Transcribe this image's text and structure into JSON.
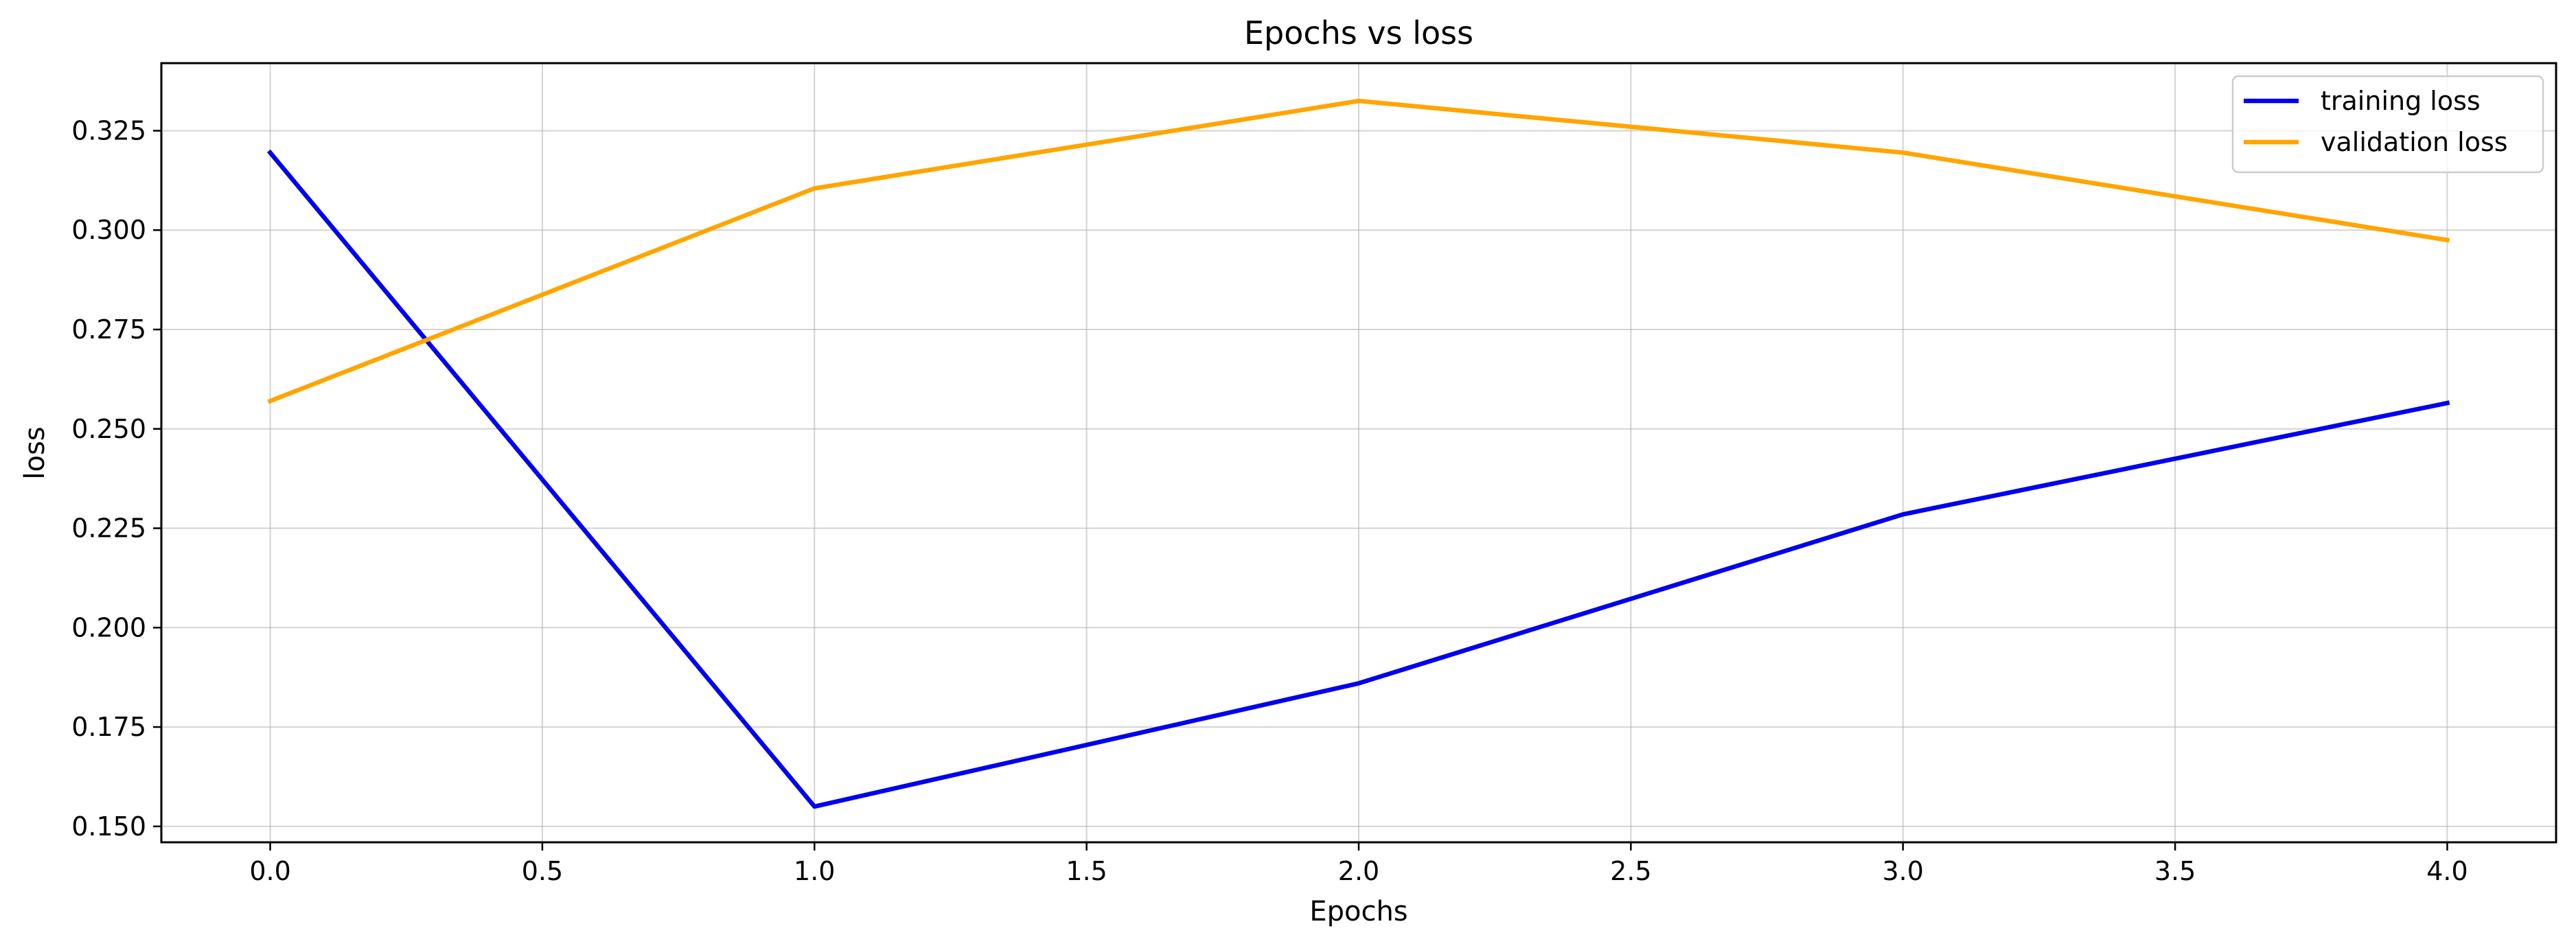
{
  "chart_data": {
    "type": "line",
    "title": "Epochs vs loss",
    "xlabel": "Epochs",
    "ylabel": "loss",
    "x": [
      0,
      1,
      2,
      3,
      4
    ],
    "xlim": [
      -0.2,
      4.2
    ],
    "ylim": [
      0.146,
      0.342
    ],
    "xticks": [
      0.0,
      0.5,
      1.0,
      1.5,
      2.0,
      2.5,
      3.0,
      3.5,
      4.0
    ],
    "xtick_labels": [
      "0.0",
      "0.5",
      "1.0",
      "1.5",
      "2.0",
      "2.5",
      "3.0",
      "3.5",
      "4.0"
    ],
    "yticks": [
      0.15,
      0.175,
      0.2,
      0.225,
      0.25,
      0.275,
      0.3,
      0.325
    ],
    "ytick_labels": [
      "0.150",
      "0.175",
      "0.200",
      "0.225",
      "0.250",
      "0.275",
      "0.300",
      "0.325"
    ],
    "grid": true,
    "legend_position": "top-right",
    "series": [
      {
        "name": "training loss",
        "color": "#0000ee",
        "values": [
          0.3195,
          0.155,
          0.186,
          0.2285,
          0.2565
        ]
      },
      {
        "name": "validation loss",
        "color": "#ffa500",
        "values": [
          0.257,
          0.3105,
          0.3325,
          0.3195,
          0.2975
        ]
      }
    ]
  }
}
